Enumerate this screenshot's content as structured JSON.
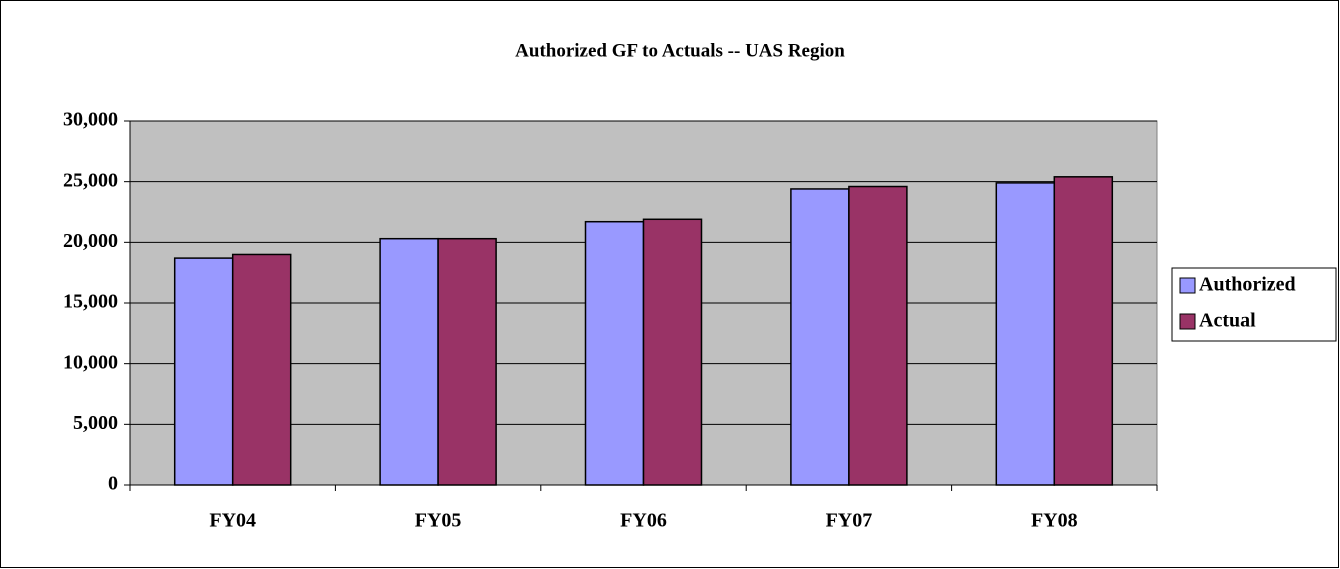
{
  "chart_data": {
    "type": "bar",
    "title": "Authorized GF to Actuals -- UAS Region",
    "categories": [
      "FY04",
      "FY05",
      "FY06",
      "FY07",
      "FY08"
    ],
    "series": [
      {
        "name": "Authorized",
        "color": "#9999ff",
        "values": [
          18700,
          20300,
          21700,
          24400,
          24900
        ]
      },
      {
        "name": "Actual",
        "color": "#993366",
        "values": [
          19000,
          20300,
          21900,
          24600,
          25400
        ]
      }
    ],
    "ylim": [
      0,
      30000
    ],
    "yticks": [
      0,
      {
        "value": 5000,
        "label": "5,000"
      },
      {
        "value": 10000,
        "label": "10,000"
      },
      {
        "value": 15000,
        "label": "15,000"
      },
      {
        "value": 20000,
        "label": "20,000"
      },
      {
        "value": 25000,
        "label": "25,000"
      },
      {
        "value": 30000,
        "label": "30,000"
      }
    ],
    "grid": true,
    "legend": "right"
  }
}
